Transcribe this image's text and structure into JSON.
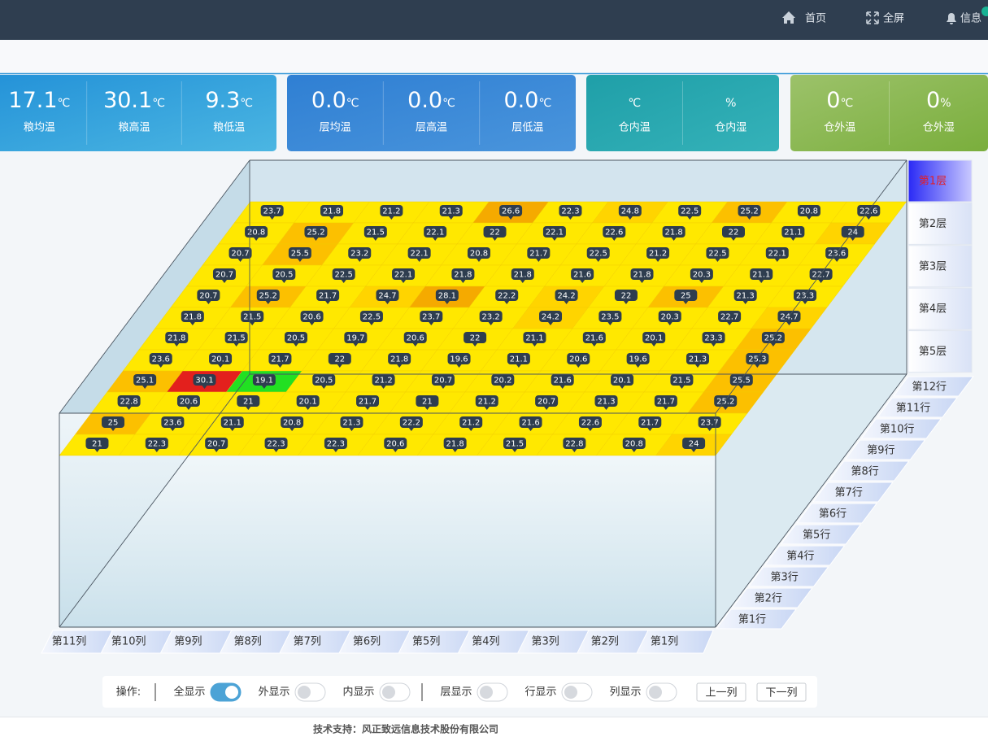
{
  "nav": {
    "items": [
      "首页",
      "全屏",
      "信息"
    ]
  },
  "cards": [
    {
      "items": [
        {
          "value": "17.1",
          "unit": "℃",
          "label": "粮均温"
        },
        {
          "value": "30.1",
          "unit": "℃",
          "label": "粮高温"
        },
        {
          "value": "9.3",
          "unit": "℃",
          "label": "粮低温"
        }
      ]
    },
    {
      "items": [
        {
          "value": "0.0",
          "unit": "℃",
          "label": "层均温"
        },
        {
          "value": "0.0",
          "unit": "℃",
          "label": "层高温"
        },
        {
          "value": "0.0",
          "unit": "℃",
          "label": "层低温"
        }
      ]
    },
    {
      "items": [
        {
          "unit": "℃",
          "label": "仓内温"
        },
        {
          "unit": "%",
          "label": "仓内湿"
        }
      ]
    },
    {
      "items": [
        {
          "value": "0",
          "unit": "℃",
          "label": "仓外温"
        },
        {
          "value": "0",
          "unit": "%",
          "label": "仓外湿"
        }
      ]
    }
  ],
  "grid": {
    "rows": [
      [
        23.7,
        21.8,
        21.2,
        21.3,
        26.6,
        22.3,
        24.8,
        22.5,
        25.2,
        20.8,
        22.6
      ],
      [
        20.8,
        25.2,
        21.5,
        22.1,
        22,
        22.1,
        22.6,
        21.8,
        22,
        21.1,
        24
      ],
      [
        20.7,
        25.5,
        23.2,
        22.1,
        20.8,
        21.7,
        22.5,
        21.2,
        22.5,
        22.1,
        23.6
      ],
      [
        20.7,
        20.5,
        22.5,
        22.1,
        21.8,
        21.8,
        21.6,
        21.8,
        20.3,
        21.1,
        22.7
      ],
      [
        20.7,
        25.2,
        21.7,
        24.7,
        28.1,
        22.2,
        24.2,
        22,
        25,
        21.3,
        23.3
      ],
      [
        21.8,
        21.5,
        20.6,
        22.5,
        23.7,
        23.2,
        24.2,
        23.5,
        20.3,
        22.7,
        24.7
      ],
      [
        21.8,
        21.5,
        20.5,
        19.7,
        20.6,
        22,
        21.1,
        21.6,
        20.1,
        23.3,
        25.2
      ],
      [
        23.6,
        20.1,
        21.7,
        22,
        21.8,
        19.6,
        21.1,
        20.6,
        19.6,
        21.3,
        25.3
      ],
      [
        25.1,
        30.1,
        19.1,
        20.5,
        21.2,
        20.7,
        20.2,
        21.6,
        20.1,
        21.5,
        25.5
      ],
      [
        22.8,
        20.6,
        21,
        20.1,
        21.7,
        21,
        21.2,
        20.7,
        21.3,
        21.7,
        25.2
      ],
      [
        25,
        23.6,
        21.1,
        20.8,
        21.3,
        22.2,
        21.2,
        21.6,
        22.6,
        21.7,
        23.7
      ],
      [
        21,
        22.3,
        20.7,
        22.3,
        22.3,
        20.6,
        21.8,
        21.5,
        22.8,
        20.8,
        24
      ]
    ],
    "row_labels": [
      "第12行",
      "第11行",
      "第10行",
      "第9行",
      "第8行",
      "第7行",
      "第6行",
      "第5行",
      "第4行",
      "第3行",
      "第2行",
      "第1行"
    ],
    "column_labels": [
      "第11列",
      "第10列",
      "第9列",
      "第8列",
      "第7列",
      "第6列",
      "第5列",
      "第4列",
      "第3列",
      "第2列",
      "第1列"
    ],
    "layers": [
      "第1层",
      "第2层",
      "第3层",
      "第4层",
      "第5层"
    ],
    "active_layer": 0
  },
  "controls": {
    "label": "操作:",
    "toggles": [
      {
        "label": "全显示",
        "on": true
      },
      {
        "label": "外显示",
        "on": false
      },
      {
        "label": "内显示",
        "on": false
      },
      {
        "label": "层显示",
        "on": false
      },
      {
        "label": "行显示",
        "on": false
      },
      {
        "label": "列显示",
        "on": false
      }
    ],
    "buttons": [
      "上一列",
      "下一列"
    ]
  },
  "footer": "技术支持：风正致远信息技术股份有限公司"
}
